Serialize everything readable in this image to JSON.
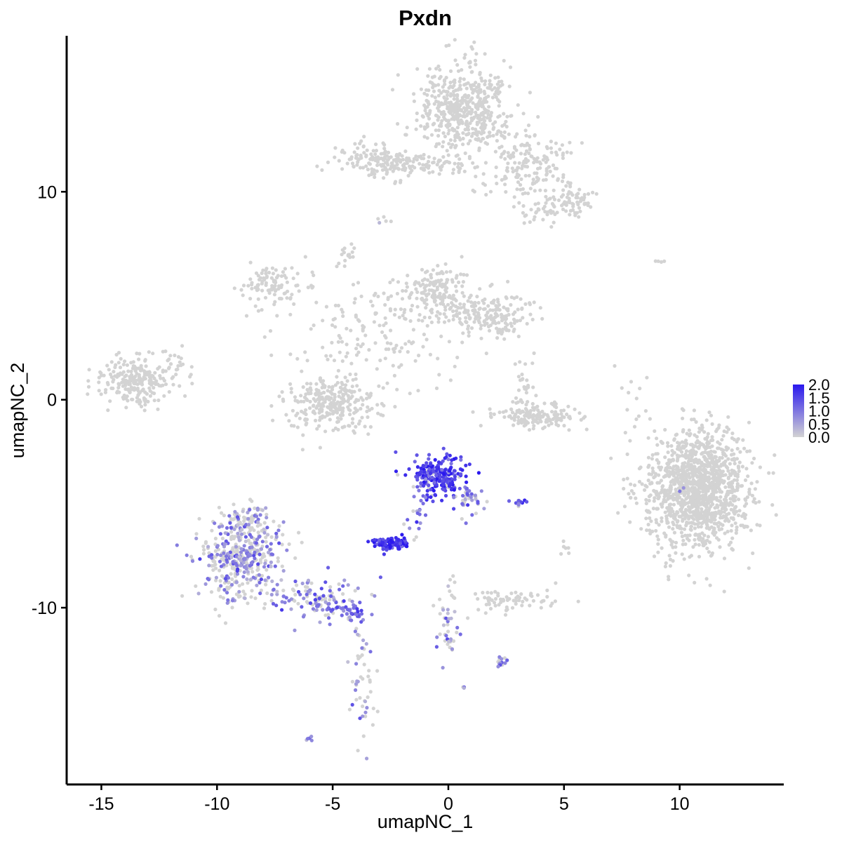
{
  "chart_data": {
    "type": "scatter",
    "title": "Pxdn",
    "xlabel": "umapNC_1",
    "ylabel": "umapNC_2",
    "xlim": [
      -16.5,
      14.5
    ],
    "ylim": [
      -18.5,
      17.5
    ],
    "xticks": [
      -15,
      -10,
      -5,
      0,
      5,
      10
    ],
    "yticks": [
      -10,
      0,
      10
    ],
    "xtick_labels": [
      "-15",
      "-10",
      "-5",
      "0",
      "5",
      "10"
    ],
    "ytick_labels": [
      "-10",
      "0",
      "10"
    ],
    "color_scale": {
      "low": "#d3d3d3",
      "high": "#2a18ee",
      "min": 0.0,
      "max": 2.0
    },
    "legend": {
      "position": "right",
      "labels": [
        "2.0",
        "1.5",
        "1.0",
        "0.5",
        "0.0"
      ],
      "values": [
        2.0,
        1.5,
        1.0,
        0.5,
        0.0
      ]
    },
    "grid": false,
    "clusters": [
      {
        "name": "top-right-blob",
        "x": 0.7,
        "y": 14.0,
        "sx": 1.0,
        "sy": 1.1,
        "n": 520,
        "expr_frac": 0.002,
        "expr_mean": 0.8
      },
      {
        "name": "top-left-arm",
        "x": -3.0,
        "y": 11.5,
        "sx": 1.0,
        "sy": 0.4,
        "n": 160,
        "expr_frac": 0.0,
        "expr_mean": 0.0
      },
      {
        "name": "top-bridge",
        "x": -0.6,
        "y": 11.2,
        "sx": 1.0,
        "sy": 0.25,
        "n": 50,
        "expr_frac": 0.0,
        "expr_mean": 0.0
      },
      {
        "name": "top-right-arm",
        "x": 3.5,
        "y": 11.2,
        "sx": 1.1,
        "sy": 0.9,
        "n": 180,
        "expr_frac": 0.0,
        "expr_mean": 0.0
      },
      {
        "name": "top-far-right",
        "x": 5.5,
        "y": 9.6,
        "sx": 0.4,
        "sy": 0.3,
        "n": 45,
        "expr_frac": 0.0,
        "expr_mean": 0.0
      },
      {
        "name": "top-lower-stream",
        "x": 4.5,
        "y": 9.0,
        "sx": 0.7,
        "sy": 0.4,
        "n": 40,
        "expr_frac": 0.0,
        "expr_mean": 0.0
      },
      {
        "name": "small-mid",
        "x": -2.7,
        "y": 8.7,
        "sx": 0.15,
        "sy": 0.15,
        "n": 5,
        "expr_frac": 0.4,
        "expr_mean": 0.6
      },
      {
        "name": "middle-left-lobe",
        "x": -7.5,
        "y": 5.5,
        "sx": 0.7,
        "sy": 0.6,
        "n": 100,
        "expr_frac": 0.0,
        "expr_mean": 0.0
      },
      {
        "name": "middle-center",
        "x": -0.6,
        "y": 5.2,
        "sx": 0.7,
        "sy": 0.7,
        "n": 160,
        "expr_frac": 0.0,
        "expr_mean": 0.0
      },
      {
        "name": "middle-right",
        "x": 1.8,
        "y": 4.1,
        "sx": 0.9,
        "sy": 0.5,
        "n": 180,
        "expr_frac": 0.0,
        "expr_mean": 0.0
      },
      {
        "name": "middle-stems",
        "x": -3.0,
        "y": 3.3,
        "sx": 2.0,
        "sy": 1.4,
        "n": 170,
        "expr_frac": 0.0,
        "expr_mean": 0.0
      },
      {
        "name": "middle-upper-stem",
        "x": -4.4,
        "y": 7.0,
        "sx": 0.2,
        "sy": 0.4,
        "n": 15,
        "expr_frac": 0.0,
        "expr_mean": 0.0
      },
      {
        "name": "lower-left-lobe",
        "x": -5.0,
        "y": -0.2,
        "sx": 1.0,
        "sy": 0.7,
        "n": 280,
        "expr_frac": 0.0,
        "expr_mean": 0.0
      },
      {
        "name": "left-cluster",
        "x": -13.6,
        "y": 1.0,
        "sx": 0.8,
        "sy": 0.6,
        "n": 230,
        "expr_frac": 0.0,
        "expr_mean": 0.0
      },
      {
        "name": "left-cluster-tail",
        "x": -11.7,
        "y": 1.6,
        "sx": 0.4,
        "sy": 0.7,
        "n": 20,
        "expr_frac": 0.0,
        "expr_mean": 0.0
      },
      {
        "name": "mid-right-arc",
        "x": 3.8,
        "y": -0.8,
        "sx": 0.9,
        "sy": 0.3,
        "n": 150,
        "expr_frac": 0.0,
        "expr_mean": 0.0
      },
      {
        "name": "mid-right-stem",
        "x": 3.2,
        "y": 0.8,
        "sx": 0.3,
        "sy": 0.6,
        "n": 30,
        "expr_frac": 0.0,
        "expr_mean": 0.0
      },
      {
        "name": "right-big-blob",
        "x": 10.8,
        "y": -4.3,
        "sx": 1.1,
        "sy": 1.4,
        "n": 1300,
        "expr_frac": 0.002,
        "expr_mean": 0.7
      },
      {
        "name": "right-small-stream",
        "x": 8.0,
        "y": 0.0,
        "sx": 0.3,
        "sy": 0.9,
        "n": 12,
        "expr_frac": 0.0,
        "expr_mean": 0.0
      },
      {
        "name": "expressing-core",
        "x": -0.5,
        "y": -3.6,
        "sx": 0.55,
        "sy": 0.5,
        "n": 230,
        "expr_frac": 0.93,
        "expr_mean": 1.55
      },
      {
        "name": "expressing-arm",
        "x": 0.9,
        "y": -4.8,
        "sx": 0.35,
        "sy": 0.4,
        "n": 40,
        "expr_frac": 0.7,
        "expr_mean": 1.0
      },
      {
        "name": "expressing-stem",
        "x": -1.3,
        "y": -5.6,
        "sx": 0.25,
        "sy": 0.7,
        "n": 20,
        "expr_frac": 0.8,
        "expr_mean": 1.1
      },
      {
        "name": "expressing-bar",
        "x": -2.5,
        "y": -6.9,
        "sx": 0.4,
        "sy": 0.15,
        "n": 90,
        "expr_frac": 0.95,
        "expr_mean": 1.75
      },
      {
        "name": "expressing-small",
        "x": 2.9,
        "y": -4.9,
        "sx": 0.2,
        "sy": 0.08,
        "n": 12,
        "expr_frac": 0.8,
        "expr_mean": 1.3
      },
      {
        "name": "lower-left-blob",
        "x": -9.0,
        "y": -7.6,
        "sx": 0.9,
        "sy": 1.0,
        "n": 420,
        "expr_frac": 0.45,
        "expr_mean": 0.85
      },
      {
        "name": "lower-left-top",
        "x": -8.6,
        "y": -5.8,
        "sx": 0.6,
        "sy": 0.4,
        "n": 70,
        "expr_frac": 0.35,
        "expr_mean": 0.8
      },
      {
        "name": "lower-left-tail",
        "x": -5.5,
        "y": -9.6,
        "sx": 1.1,
        "sy": 0.5,
        "n": 140,
        "expr_frac": 0.6,
        "expr_mean": 0.95
      },
      {
        "name": "lower-left-tail-end",
        "x": -4.1,
        "y": -10.3,
        "sx": 0.25,
        "sy": 0.2,
        "n": 30,
        "expr_frac": 0.8,
        "expr_mean": 1.2
      },
      {
        "name": "lower-stream",
        "x": -3.7,
        "y": -13.6,
        "sx": 0.3,
        "sy": 1.4,
        "n": 50,
        "expr_frac": 0.4,
        "expr_mean": 0.8
      },
      {
        "name": "lower-center-stream",
        "x": 0.0,
        "y": -10.5,
        "sx": 0.25,
        "sy": 1.2,
        "n": 45,
        "expr_frac": 0.5,
        "expr_mean": 0.85
      },
      {
        "name": "lower-right-small",
        "x": 2.8,
        "y": -9.6,
        "sx": 0.9,
        "sy": 0.3,
        "n": 70,
        "expr_frac": 0.0,
        "expr_mean": 0.0
      },
      {
        "name": "tiny-lower",
        "x": 2.3,
        "y": -12.6,
        "sx": 0.15,
        "sy": 0.15,
        "n": 14,
        "expr_frac": 0.6,
        "expr_mean": 1.0
      },
      {
        "name": "tiny-bottom",
        "x": -6.0,
        "y": -16.3,
        "sx": 0.08,
        "sy": 0.06,
        "n": 5,
        "expr_frac": 1.0,
        "expr_mean": 1.0
      },
      {
        "name": "tiny-mid-low",
        "x": 0.7,
        "y": -13.8,
        "sx": 0.08,
        "sy": 0.05,
        "n": 3,
        "expr_frac": 0.5,
        "expr_mean": 0.6
      },
      {
        "name": "isolated-right",
        "x": 9.3,
        "y": 6.7,
        "sx": 0.15,
        "sy": 0.05,
        "n": 4,
        "expr_frac": 0.0,
        "expr_mean": 0.0
      },
      {
        "name": "isolated-mid",
        "x": 5.1,
        "y": -7.2,
        "sx": 0.1,
        "sy": 0.2,
        "n": 6,
        "expr_frac": 0.0,
        "expr_mean": 0.0
      }
    ]
  }
}
